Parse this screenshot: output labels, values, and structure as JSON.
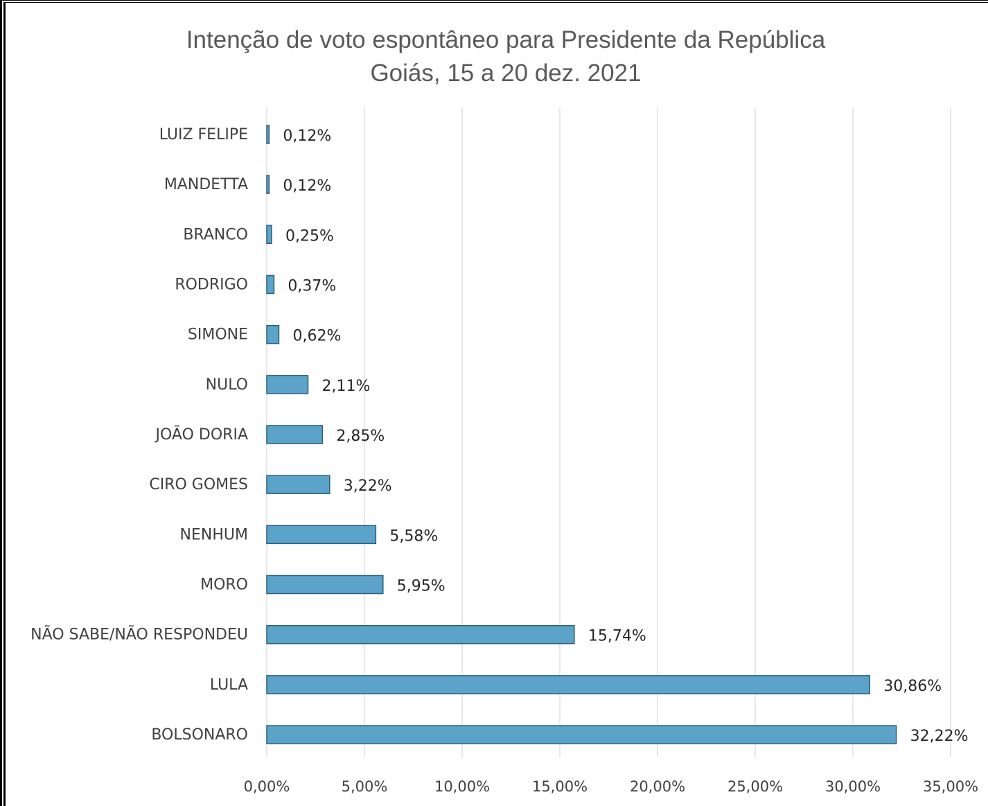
{
  "chart_data": {
    "type": "bar",
    "orientation": "horizontal",
    "title": "Intenção de voto espontâneo para Presidente da República",
    "subtitle": "Goiás, 15 a 20 dez. 2021",
    "xlabel": "",
    "ylabel": "",
    "xlim": [
      0,
      35
    ],
    "xticks": [
      0,
      5,
      10,
      15,
      20,
      25,
      30,
      35
    ],
    "xtick_labels": [
      "0,00%",
      "5,00%",
      "10,00%",
      "15,00%",
      "20,00%",
      "25,00%",
      "30,00%",
      "35,00%"
    ],
    "grid": "vertical",
    "legend": "none",
    "bar_color": "#5ba3c9",
    "bar_edge_color": "#2f5f78",
    "categories": [
      "LUIZ FELIPE",
      "MANDETTA",
      "BRANCO",
      "RODRIGO",
      "SIMONE",
      "NULO",
      "JOÃO DORIA",
      "CIRO GOMES",
      "NENHUM",
      "MORO",
      "NÃO SABE/NÃO RESPONDEU",
      "LULA",
      "BOLSONARO"
    ],
    "values": [
      0.12,
      0.12,
      0.25,
      0.37,
      0.62,
      2.11,
      2.85,
      3.22,
      5.58,
      5.95,
      15.74,
      30.86,
      32.22
    ],
    "value_labels": [
      "0,12%",
      "0,12%",
      "0,25%",
      "0,37%",
      "0,62%",
      "2,11%",
      "2,85%",
      "3,22%",
      "5,58%",
      "5,95%",
      "15,74%",
      "30,86%",
      "32,22%"
    ]
  }
}
